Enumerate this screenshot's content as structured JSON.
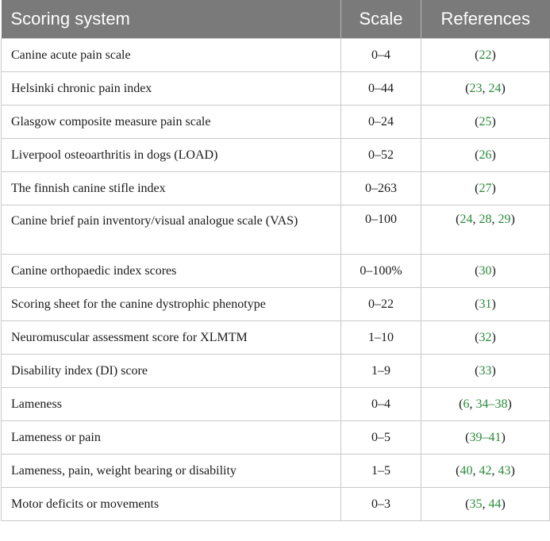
{
  "header": {
    "col1": "Scoring system",
    "col2": "Scale",
    "col3": "References"
  },
  "rows": [
    {
      "name": "Canine acute pain scale",
      "scale": "0–4",
      "refs": [
        "22"
      ]
    },
    {
      "name": "Helsinki chronic pain index",
      "scale": "0–44",
      "refs": [
        "23",
        "24"
      ]
    },
    {
      "name": "Glasgow composite measure pain scale",
      "scale": "0–24",
      "refs": [
        "25"
      ]
    },
    {
      "name": "Liverpool osteoarthritis in dogs (LOAD)",
      "scale": "0–52",
      "refs": [
        "26"
      ]
    },
    {
      "name": "The finnish canine stifle index",
      "scale": "0–263",
      "refs": [
        "27"
      ]
    },
    {
      "name": "Canine brief pain inventory/visual analogue scale (VAS)",
      "scale": "0–100",
      "refs": [
        "24",
        "28",
        "29"
      ]
    },
    {
      "name": "Canine orthopaedic index scores",
      "scale": "0–100%",
      "refs": [
        "30"
      ]
    },
    {
      "name": "Scoring sheet for the canine dystrophic phenotype",
      "scale": "0–22",
      "refs": [
        "31"
      ]
    },
    {
      "name": "Neuromuscular assessment score for XLMTM",
      "scale": "1–10",
      "refs": [
        "32"
      ]
    },
    {
      "name": "Disability index (DI) score",
      "scale": "1–9",
      "refs": [
        "33"
      ]
    },
    {
      "name": "Lameness",
      "scale": "0–4",
      "refs": [
        "6",
        "34–38"
      ]
    },
    {
      "name": "Lameness or pain",
      "scale": "0–5",
      "refs": [
        "39–41"
      ]
    },
    {
      "name": "Lameness, pain, weight bearing or disability",
      "scale": "1–5",
      "refs": [
        "40",
        "42",
        "43"
      ]
    },
    {
      "name": "Motor deficits or movements",
      "scale": "0–3",
      "refs": [
        "35",
        "44"
      ]
    }
  ],
  "colors": {
    "header_bg": "#7a7a7a",
    "header_text": "#ffffff",
    "ref_link": "#2a8a3a",
    "grid": "#c9c9c9"
  }
}
